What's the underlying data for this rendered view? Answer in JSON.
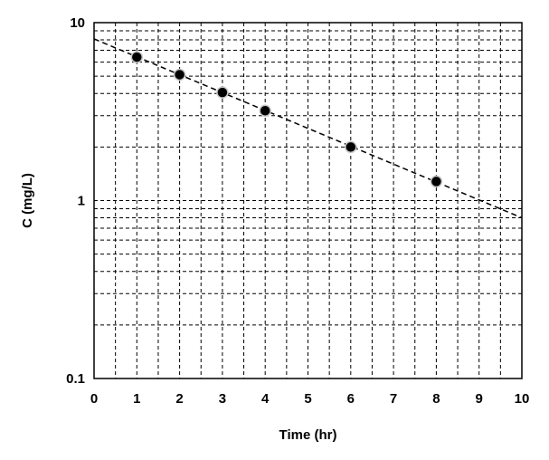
{
  "chart_data": {
    "type": "scatter",
    "title": "",
    "xlabel": "Time (hr)",
    "ylabel": "C (mg/L)",
    "xlim": [
      0,
      10
    ],
    "ylim": [
      0.1,
      10
    ],
    "y_scale": "log",
    "grid": true,
    "grid_style": "dashed",
    "x_ticks": [
      0,
      1,
      2,
      3,
      4,
      5,
      6,
      7,
      8,
      9,
      10
    ],
    "x_tick_labels": [
      "0",
      "1",
      "2",
      "3",
      "4",
      "5",
      "6",
      "7",
      "8",
      "9",
      "10"
    ],
    "y_ticks": [
      0.1,
      1,
      10
    ],
    "y_tick_labels": [
      "0.1",
      "1",
      "10"
    ],
    "series": [
      {
        "marker": "circle",
        "color": "#000000",
        "x": [
          1,
          2,
          3,
          4,
          6,
          8
        ],
        "y": [
          6.4,
          5.1,
          4.05,
          3.2,
          2.0,
          1.28
        ]
      }
    ],
    "trendline": {
      "style": "dashed",
      "color": "#000000",
      "x": [
        0,
        10
      ],
      "y": [
        8.1,
        0.8
      ]
    }
  }
}
